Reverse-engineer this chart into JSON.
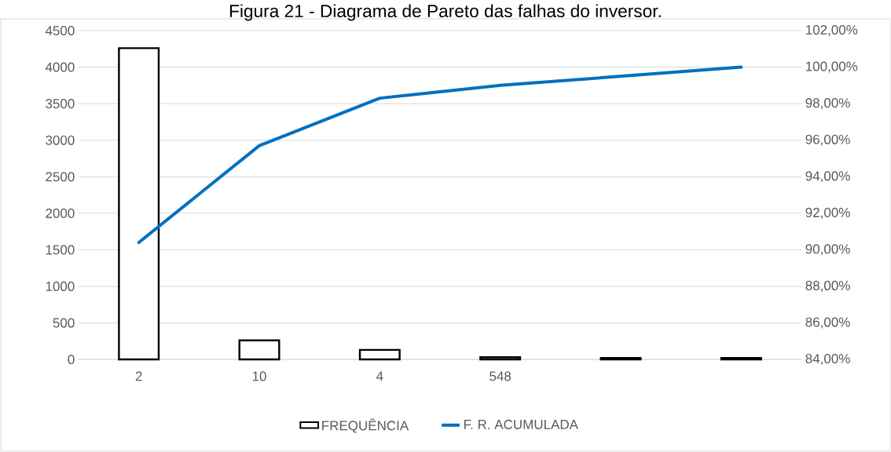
{
  "chart_data": {
    "type": "bar",
    "title": "Figura 21 - Diagrama de Pareto das falhas do inversor.",
    "categories": [
      "2",
      "10",
      "4",
      "548",
      null,
      null
    ],
    "series": [
      {
        "name": "FREQUÊNCIA",
        "color": "#000000",
        "values": [
          4260,
          260,
          130,
          30,
          20,
          20
        ]
      },
      {
        "name": "F. R. ACUMULADA",
        "type": "line",
        "axis": "y2",
        "color": "#0070c0",
        "values": [
          90.4,
          95.7,
          98.3,
          99.0,
          99.5,
          100.0
        ]
      }
    ],
    "ylim": [
      0,
      4500
    ],
    "yticks": [
      0,
      500,
      1000,
      1500,
      2000,
      2500,
      3000,
      3500,
      4000,
      4500
    ],
    "y2lim": [
      84,
      102
    ],
    "y2ticks": [
      {
        "value": 84,
        "label": "84,00%"
      },
      {
        "value": 86,
        "label": "86,00%"
      },
      {
        "value": 88,
        "label": "88,00%"
      },
      {
        "value": 90,
        "label": "90,00%"
      },
      {
        "value": 92,
        "label": "92,00%"
      },
      {
        "value": 94,
        "label": "94,00%"
      },
      {
        "value": 96,
        "label": "96,00%"
      },
      {
        "value": 98,
        "label": "98,00%"
      },
      {
        "value": 100,
        "label": "100,00%"
      },
      {
        "value": 102,
        "label": "102,00%"
      }
    ],
    "grid": "y",
    "legend": "bottom",
    "marker": "none"
  }
}
